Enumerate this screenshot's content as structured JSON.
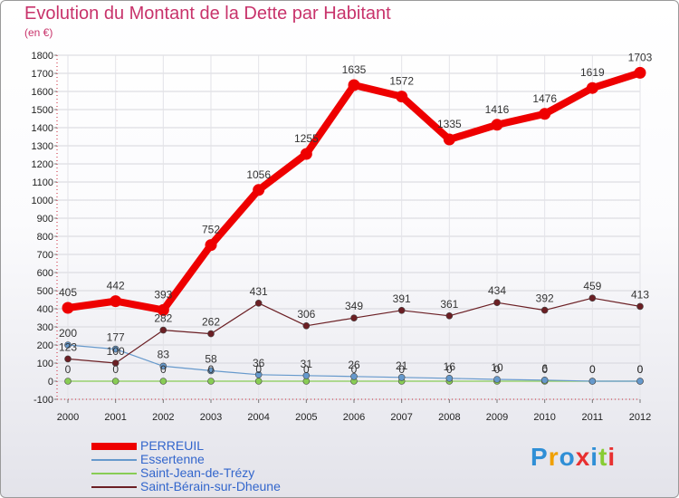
{
  "chart_data": {
    "type": "line",
    "title": "Evolution du Montant de la Dette par Habitant",
    "subtitle": "(en €)",
    "xlabel": "",
    "ylabel": "",
    "x": [
      "2000",
      "2001",
      "2002",
      "2003",
      "2004",
      "2005",
      "2006",
      "2007",
      "2008",
      "2009",
      "2010",
      "2011",
      "2012"
    ],
    "ylim": [
      -100,
      1800
    ],
    "yticks": [
      -100,
      0,
      100,
      200,
      300,
      400,
      500,
      600,
      700,
      800,
      900,
      1000,
      1100,
      1200,
      1300,
      1400,
      1500,
      1600,
      1700,
      1800
    ],
    "grid": true,
    "legend_position": "bottom-left",
    "series": [
      {
        "name": "PERREUIL",
        "color": "#ee0000",
        "values": [
          405,
          442,
          393,
          752,
          1056,
          1255,
          1635,
          1572,
          1335,
          1416,
          1476,
          1619,
          1703
        ],
        "labels": [
          "405",
          "442",
          "393",
          "752",
          "1056",
          "1255",
          "1635",
          "1572",
          "1335",
          "1416",
          "1476",
          "1619",
          "1703"
        ]
      },
      {
        "name": "Essertenne",
        "color": "#6699cc",
        "values": [
          200,
          177,
          83,
          58,
          36,
          31,
          26,
          21,
          16,
          10,
          6,
          0,
          0
        ],
        "labels": [
          "200",
          "177",
          "83",
          "58",
          "36",
          "31",
          "26",
          "21",
          "16",
          "10",
          "6",
          "0",
          "0"
        ]
      },
      {
        "name": "Saint-Jean-de-Trézy",
        "color": "#88cc55",
        "values": [
          0,
          0,
          0,
          0,
          0,
          0,
          0,
          0,
          0,
          0,
          0,
          0,
          0
        ],
        "labels": [
          "0",
          "0",
          "0",
          "0",
          "0",
          "0",
          "0",
          "0",
          "0",
          "0",
          "0",
          "0",
          "0"
        ]
      },
      {
        "name": "Saint-Bérain-sur-Dheune",
        "color": "#6b1f24",
        "values": [
          123,
          100,
          282,
          262,
          431,
          306,
          349,
          391,
          361,
          434,
          392,
          459,
          413
        ],
        "labels": [
          "123",
          "100",
          "282",
          "262",
          "431",
          "306",
          "349",
          "391",
          "361",
          "434",
          "392",
          "459",
          "413"
        ]
      }
    ]
  },
  "logo": {
    "text": "Proxiti",
    "letter_colors": [
      "#2f8fd6",
      "#f0a000",
      "#2f8fd6",
      "#e83030",
      "#2f8fd6",
      "#88cc33",
      "#e83030"
    ]
  }
}
